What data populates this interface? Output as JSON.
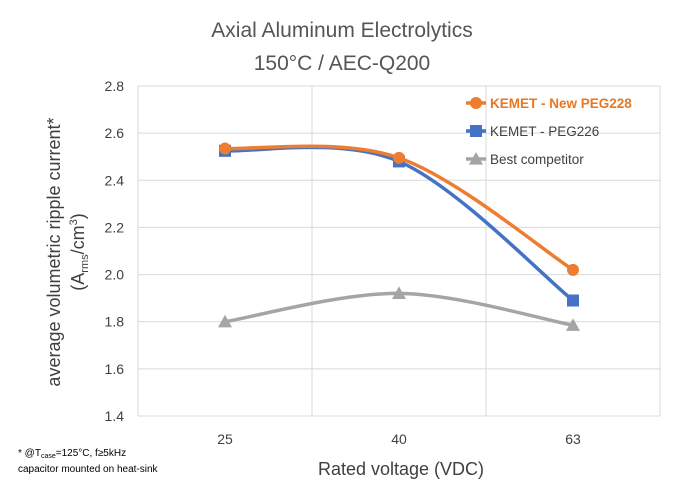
{
  "chart_data": {
    "type": "line",
    "title": "Axial Aluminum Electrolytics",
    "subtitle": "150°C / AEC-Q200",
    "xlabel": "Rated voltage (VDC)",
    "ylabel_line1": "average volumetric ripple current*",
    "ylabel_line2_prefix": "(A",
    "ylabel_line2_sub": "rms",
    "ylabel_line2_mid": "/cm",
    "ylabel_line2_sup": "3",
    "ylabel_line2_suffix": ")",
    "categories": [
      "25",
      "40",
      "63"
    ],
    "ylim": [
      1.4,
      2.8
    ],
    "yticks": [
      "1.4",
      "1.6",
      "1.8",
      "2.0",
      "2.2",
      "2.4",
      "2.6",
      "2.8"
    ],
    "grid": true,
    "legend_position": "top-right",
    "series": [
      {
        "name": "KEMET - New PEG228",
        "color": "#ed7d31",
        "marker": "circle",
        "values": [
          2.535,
          2.495,
          2.02
        ]
      },
      {
        "name": "KEMET - PEG226",
        "color": "#4472c4",
        "marker": "square",
        "values": [
          2.525,
          2.48,
          1.89
        ]
      },
      {
        "name": "Best competitor",
        "color": "#a5a5a5",
        "marker": "triangle",
        "values": [
          1.8,
          1.92,
          1.785
        ]
      }
    ],
    "footnote": {
      "line1_prefix": "* @T",
      "line1_sub": "case",
      "line1_suffix": "=125°C, f≥5kHz",
      "line2": "capacitor mounted on heat-sink"
    }
  }
}
